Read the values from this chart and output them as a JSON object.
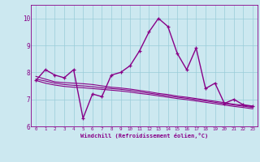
{
  "xlabel": "Windchill (Refroidissement éolien,°C)",
  "bg_color": "#cce8f0",
  "grid_color": "#99ccd9",
  "line_color": "#880088",
  "marker": "+",
  "xlim_min": -0.5,
  "xlim_max": 23.5,
  "ylim_min": 6.0,
  "ylim_max": 10.5,
  "yticks": [
    6,
    7,
    8,
    9,
    10
  ],
  "xticks": [
    0,
    1,
    2,
    3,
    4,
    5,
    6,
    7,
    8,
    9,
    10,
    11,
    12,
    13,
    14,
    15,
    16,
    17,
    18,
    19,
    20,
    21,
    22,
    23
  ],
  "series": [
    {
      "x": [
        0,
        1,
        2,
        3,
        4,
        5,
        6,
        7,
        8,
        9,
        10,
        11,
        12,
        13,
        14,
        15,
        16,
        17,
        18,
        19,
        20,
        21,
        22,
        23
      ],
      "y": [
        7.7,
        8.1,
        7.9,
        7.8,
        8.1,
        6.3,
        7.2,
        7.1,
        7.9,
        8.0,
        8.25,
        8.8,
        9.5,
        10.0,
        9.7,
        8.7,
        8.1,
        8.9,
        7.4,
        7.6,
        6.85,
        7.0,
        6.8,
        6.75
      ],
      "lw": 1.0,
      "marker": true,
      "ms": 3.5
    },
    {
      "x": [
        0,
        1,
        2,
        3,
        4,
        5,
        6,
        7,
        8,
        9,
        10,
        11,
        12,
        13,
        14,
        15,
        16,
        17,
        18,
        19,
        20,
        21,
        22,
        23
      ],
      "y": [
        7.85,
        7.75,
        7.65,
        7.62,
        7.6,
        7.58,
        7.55,
        7.5,
        7.45,
        7.42,
        7.38,
        7.33,
        7.28,
        7.22,
        7.18,
        7.12,
        7.08,
        7.03,
        6.98,
        6.93,
        6.88,
        6.82,
        6.78,
        6.73
      ],
      "lw": 0.8,
      "marker": false,
      "ms": 0
    },
    {
      "x": [
        0,
        1,
        2,
        3,
        4,
        5,
        6,
        7,
        8,
        9,
        10,
        11,
        12,
        13,
        14,
        15,
        16,
        17,
        18,
        19,
        20,
        21,
        22,
        23
      ],
      "y": [
        7.75,
        7.68,
        7.6,
        7.55,
        7.52,
        7.5,
        7.47,
        7.43,
        7.4,
        7.37,
        7.33,
        7.28,
        7.23,
        7.18,
        7.13,
        7.08,
        7.04,
        6.99,
        6.94,
        6.89,
        6.84,
        6.79,
        6.75,
        6.7
      ],
      "lw": 0.8,
      "marker": false,
      "ms": 0
    },
    {
      "x": [
        0,
        1,
        2,
        3,
        4,
        5,
        6,
        7,
        8,
        9,
        10,
        11,
        12,
        13,
        14,
        15,
        16,
        17,
        18,
        19,
        20,
        21,
        22,
        23
      ],
      "y": [
        7.7,
        7.6,
        7.53,
        7.48,
        7.45,
        7.43,
        7.4,
        7.37,
        7.34,
        7.31,
        7.27,
        7.22,
        7.18,
        7.13,
        7.08,
        7.03,
        6.99,
        6.94,
        6.89,
        6.84,
        6.79,
        6.74,
        6.7,
        6.65
      ],
      "lw": 0.8,
      "marker": false,
      "ms": 0
    }
  ]
}
